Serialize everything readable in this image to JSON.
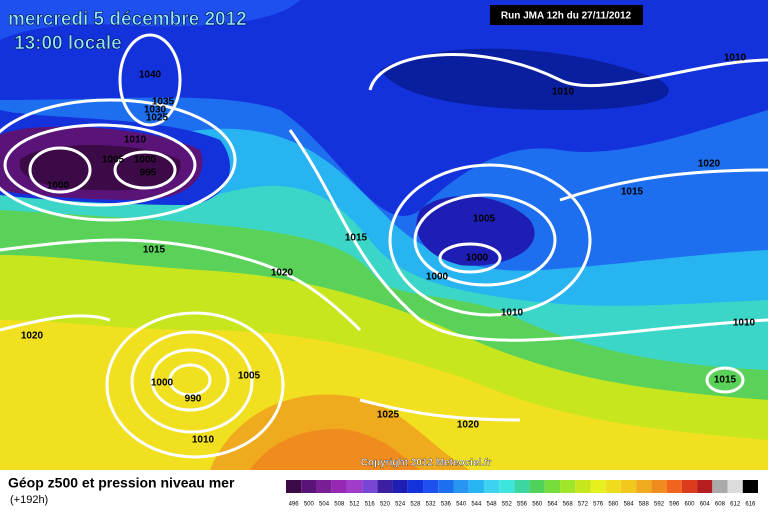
{
  "header": {
    "date": "mercredi 5 décembre 2012",
    "time": "13:00 locale",
    "run": "Run JMA 12h du 27/11/2012"
  },
  "map": {
    "isobar_labels": [
      1040,
      1035,
      1030,
      1025,
      1010,
      1005,
      1000,
      995,
      1000,
      1010,
      1010,
      1020,
      1015,
      1005,
      1015,
      1015,
      1000,
      1000,
      1020,
      1010,
      1010,
      1020,
      1005,
      1000,
      990,
      1015,
      1025,
      1020,
      1010
    ],
    "copyright": "Copyright 2012 Meteociel.fr"
  },
  "legend": {
    "title": "Géop z500 et pression niveau mer",
    "lead": "(+192h)",
    "ticks": [
      496,
      500,
      504,
      508,
      512,
      516,
      520,
      524,
      528,
      532,
      536,
      540,
      544,
      548,
      552,
      556,
      560,
      564,
      568,
      572,
      576,
      580,
      584,
      588,
      592,
      596,
      600,
      604,
      608,
      612,
      616
    ],
    "colors": [
      "#3c0a46",
      "#5a1478",
      "#7a1e96",
      "#9628b4",
      "#a03cc8",
      "#7846d2",
      "#3c1ea0",
      "#1e1eb4",
      "#1432dc",
      "#1e50f0",
      "#1e6ef0",
      "#2896f0",
      "#28b4f0",
      "#3cd2f0",
      "#3ce6dc",
      "#3cd6a0",
      "#50d25a",
      "#78dc3c",
      "#a0e628",
      "#c8e61e",
      "#e6f01e",
      "#f0dc1e",
      "#f0c81e",
      "#f0aa1e",
      "#f08c1e",
      "#f0641e",
      "#dc3c1e",
      "#b41e1e",
      "#aaaaaa",
      "#dcdcdc",
      "#000000"
    ]
  }
}
